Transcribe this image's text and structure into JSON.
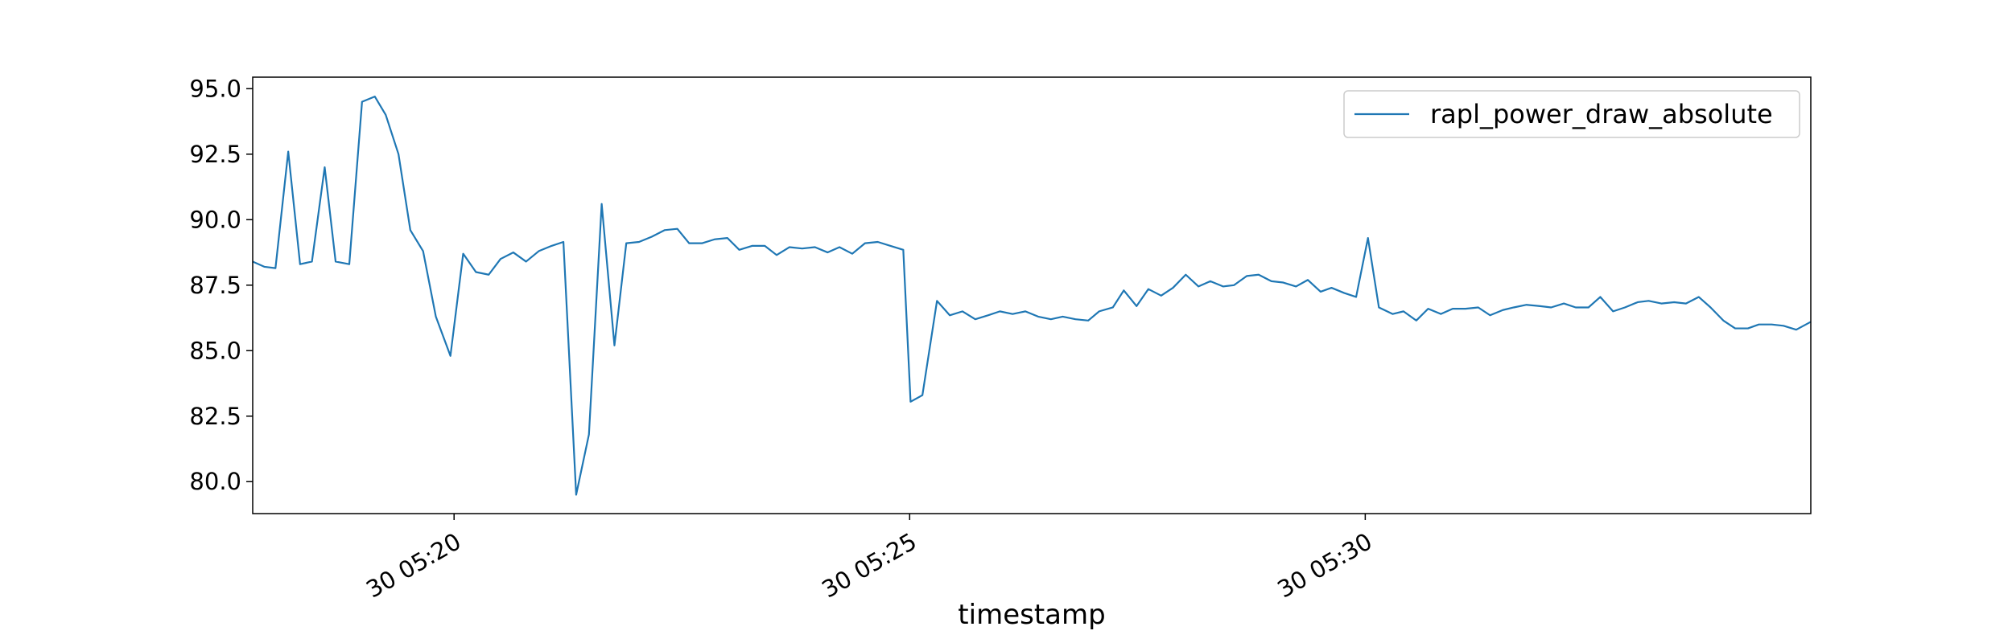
{
  "chart_data": {
    "type": "line",
    "xlabel": "timestamp",
    "x": [
      17.79,
      17.92,
      18.04,
      18.18,
      18.31,
      18.44,
      18.58,
      18.7,
      18.85,
      18.99,
      19.13,
      19.25,
      19.39,
      19.52,
      19.66,
      19.8,
      19.96,
      20.1,
      20.24,
      20.38,
      20.51,
      20.65,
      20.79,
      20.93,
      21.07,
      21.2,
      21.34,
      21.48,
      21.62,
      21.76,
      21.89,
      22.03,
      22.17,
      22.31,
      22.45,
      22.58,
      22.72,
      22.86,
      23.0,
      23.13,
      23.27,
      23.41,
      23.54,
      23.68,
      23.82,
      23.96,
      24.1,
      24.23,
      24.37,
      24.51,
      24.65,
      24.79,
      24.93,
      25.01,
      25.14,
      25.3,
      25.44,
      25.58,
      25.72,
      25.86,
      25.99,
      26.13,
      26.27,
      26.41,
      26.55,
      26.68,
      26.82,
      26.96,
      27.08,
      27.23,
      27.35,
      27.49,
      27.62,
      27.76,
      27.89,
      28.03,
      28.17,
      28.3,
      28.44,
      28.56,
      28.7,
      28.83,
      28.97,
      29.1,
      29.24,
      29.37,
      29.51,
      29.63,
      29.77,
      29.9,
      30.03,
      30.15,
      30.3,
      30.42,
      30.56,
      30.69,
      30.83,
      30.96,
      31.1,
      31.24,
      31.37,
      31.51,
      31.63,
      31.77,
      31.92,
      32.04,
      32.18,
      32.31,
      32.45,
      32.58,
      32.72,
      32.85,
      32.99,
      33.11,
      33.25,
      33.39,
      33.52,
      33.66,
      33.79,
      33.93,
      34.06,
      34.2,
      34.32,
      34.46,
      34.59,
      34.73,
      34.89
    ],
    "series": [
      {
        "name": "rapl_power_draw_absolute",
        "color": "#1f77b4",
        "values": [
          88.4,
          88.2,
          88.15,
          92.6,
          88.3,
          88.4,
          92.0,
          88.4,
          88.3,
          94.5,
          94.7,
          94.0,
          92.5,
          89.6,
          88.8,
          86.3,
          84.8,
          88.7,
          88.0,
          87.9,
          88.5,
          88.75,
          88.4,
          88.8,
          89.0,
          89.15,
          79.5,
          81.8,
          90.6,
          85.2,
          89.1,
          89.15,
          89.35,
          89.6,
          89.65,
          89.1,
          89.1,
          89.25,
          89.3,
          88.85,
          89.0,
          89.0,
          88.65,
          88.95,
          88.9,
          88.95,
          88.75,
          88.95,
          88.7,
          89.1,
          89.15,
          89.0,
          88.85,
          83.05,
          83.3,
          86.9,
          86.35,
          86.5,
          86.2,
          86.35,
          86.5,
          86.4,
          86.5,
          86.3,
          86.2,
          86.3,
          86.2,
          86.15,
          86.5,
          86.65,
          87.3,
          86.7,
          87.35,
          87.1,
          87.4,
          87.9,
          87.45,
          87.65,
          87.45,
          87.5,
          87.85,
          87.9,
          87.65,
          87.6,
          87.45,
          87.7,
          87.25,
          87.4,
          87.2,
          87.05,
          89.3,
          86.65,
          86.4,
          86.5,
          86.15,
          86.6,
          86.4,
          86.6,
          86.6,
          86.65,
          86.35,
          86.55,
          86.65,
          86.75,
          86.7,
          86.65,
          86.8,
          86.65,
          86.65,
          87.05,
          86.5,
          86.65,
          86.85,
          86.9,
          86.8,
          86.85,
          86.8,
          87.05,
          86.65,
          86.15,
          85.85,
          85.85,
          86.0,
          86.0,
          85.95,
          85.8,
          86.1
        ]
      }
    ],
    "xlim": [
      17.79,
      34.89
    ],
    "xticks": [
      {
        "value": 20,
        "label": "30 05:20"
      },
      {
        "value": 25,
        "label": "30 05:25"
      },
      {
        "value": 30,
        "label": "30 05:30"
      }
    ],
    "ylim": [
      78.78,
      95.44
    ],
    "yticks": [
      {
        "value": 80,
        "label": "80.0"
      },
      {
        "value": 82.5,
        "label": "82.5"
      },
      {
        "value": 85,
        "label": "85.0"
      },
      {
        "value": 87.5,
        "label": "87.5"
      },
      {
        "value": 90,
        "label": "90.0"
      },
      {
        "value": 92.5,
        "label": "92.5"
      },
      {
        "value": 95,
        "label": "95.0"
      }
    ],
    "legend": "upper right",
    "grid": false
  }
}
